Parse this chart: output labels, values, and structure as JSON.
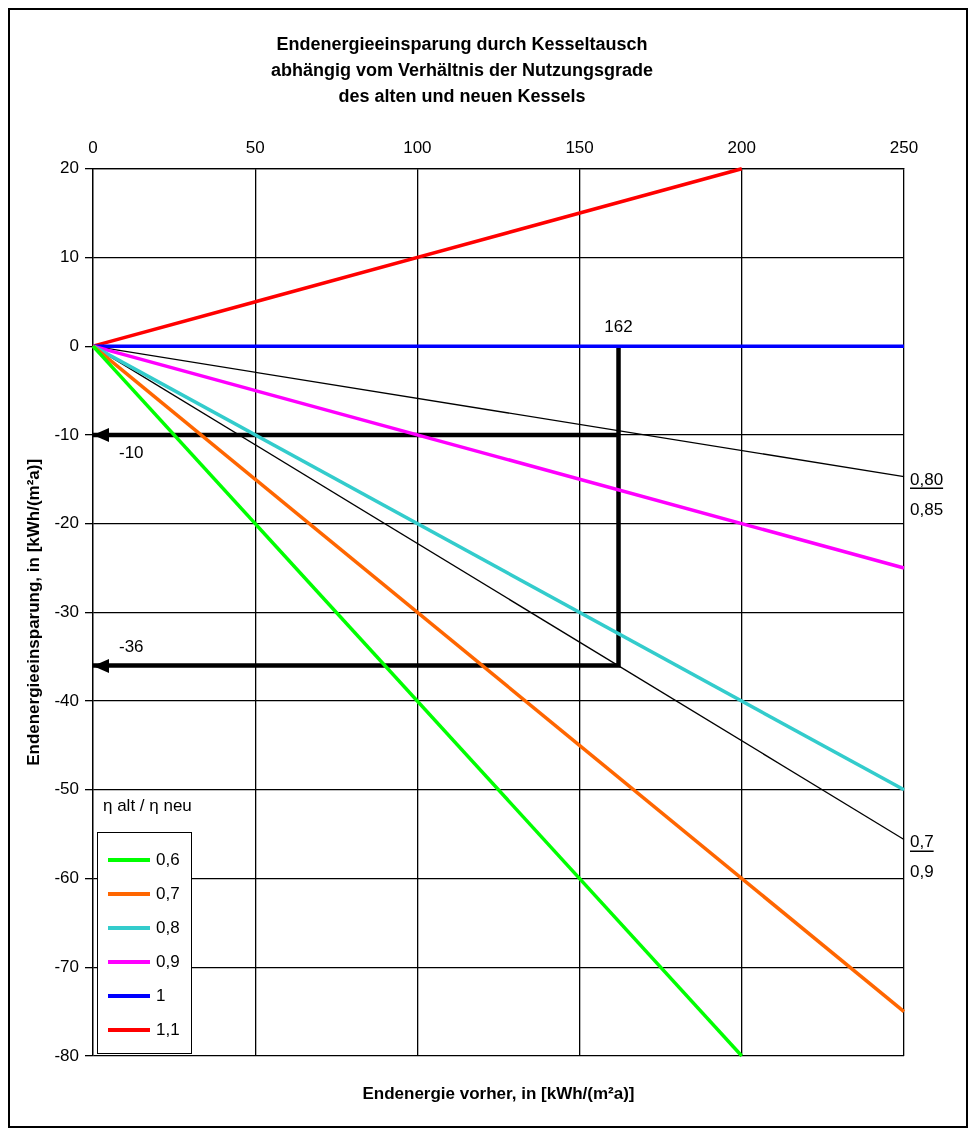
{
  "chart_data": {
    "type": "line",
    "title": "Endenergieeinsparung durch Kesseltausch\nabhängig vom Verhältnis der Nutzungsgrade\ndes alten und neuen Kessels",
    "xlabel": "Endenergie vorher, in [kWh/(m²a)]",
    "ylabel": "Endenergieeinsparung, in [kWh/(m²a)]",
    "legend_title": "η alt / η neu",
    "legend": "bottom left",
    "grid": true,
    "marker": "none",
    "line_style": "solid",
    "xlim": [
      0,
      250
    ],
    "xticks": [
      0,
      50,
      100,
      150,
      200,
      250
    ],
    "ylim": [
      -80,
      20
    ],
    "yticks": [
      -80,
      -70,
      -60,
      -50,
      -40,
      -30,
      -20,
      -10,
      0,
      10,
      20
    ],
    "series": [
      {
        "name": "0,6",
        "color": "#00ff00",
        "x": [
          0,
          200
        ],
        "values": [
          0,
          -80
        ]
      },
      {
        "name": "0,7",
        "color": "#ff6600",
        "x": [
          0,
          250
        ],
        "values": [
          0,
          -75
        ]
      },
      {
        "name": "0,8",
        "color": "#33cccc",
        "x": [
          0,
          250
        ],
        "values": [
          0,
          -50
        ]
      },
      {
        "name": "0,9",
        "color": "#ff00ff",
        "x": [
          0,
          250
        ],
        "values": [
          0,
          -25
        ]
      },
      {
        "name": "1",
        "color": "#0000ff",
        "x": [
          0,
          250
        ],
        "values": [
          0,
          0
        ]
      },
      {
        "name": "1,1",
        "color": "#ff0000",
        "x": [
          0,
          200
        ],
        "values": [
          0,
          20
        ]
      },
      {
        "color": "#000000",
        "x": [
          0,
          250
        ],
        "values": [
          0,
          -14.7
        ]
      },
      {
        "color": "#000000",
        "x": [
          0,
          250
        ],
        "values": [
          0,
          -55.6
        ]
      },
      {
        "color": "#000000",
        "x": [
          0,
          162,
          162,
          162,
          0
        ],
        "values": [
          -10,
          -10,
          0,
          -36,
          -36
        ]
      }
    ],
    "annotations": [
      {
        "text": "162",
        "x": 162,
        "y": 0
      },
      {
        "text": "-10",
        "x": 0,
        "y": -10
      },
      {
        "text": "-36",
        "x": 0,
        "y": -36
      },
      {
        "text": "0,80",
        "x": 250,
        "y": -14.7
      },
      {
        "text": "0,85",
        "x": 250,
        "y": -14.7
      },
      {
        "text": "0,7",
        "x": 250,
        "y": -55.6
      },
      {
        "text": "0,9",
        "x": 250,
        "y": -55.6
      }
    ]
  }
}
